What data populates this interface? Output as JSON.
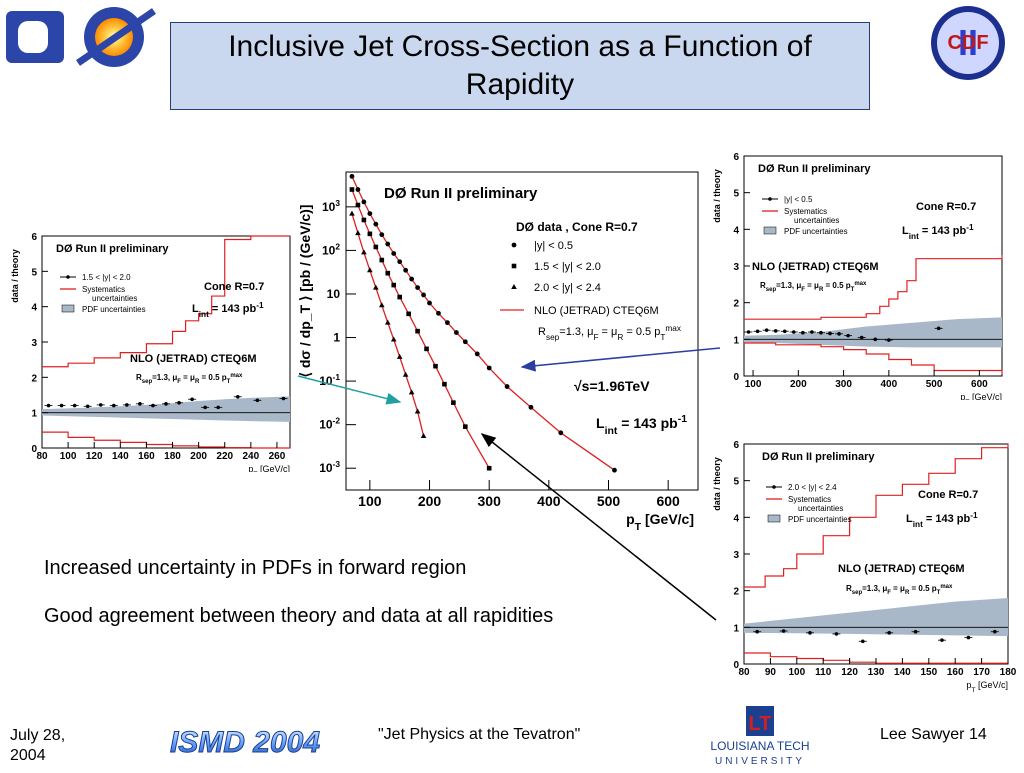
{
  "slide": {
    "title": "Inclusive Jet Cross-Section as a Function of Rapidity",
    "bullets": [
      "Increased uncertainty in PDFs in forward region",
      "Good agreement between theory and data at all rapidities"
    ],
    "footer": {
      "date": "July 28, 2004",
      "talk": "\"Jet Physics at the Tevatron\"",
      "author_page": "Lee Sawyer 14"
    },
    "logos": {
      "d0": "DØ",
      "cdf": "CDF",
      "cdf_roman": "II",
      "ismd": "ISMD 2004",
      "latech_line1": "LOUISIANA TECH",
      "latech_line2": "UNIVERSITY",
      "latech_mark": "LT"
    },
    "colors": {
      "title_bg": "#c9d7ef",
      "theory": "#e02020",
      "pdf_band": "#a8b8c8",
      "arrow_blue": "#2a3fa0",
      "arrow_teal": "#20a0a0"
    }
  },
  "chart_data": [
    {
      "id": "main",
      "type": "scatter",
      "title": "DØ Run II preliminary",
      "xlabel": "p_T [GeV/c]",
      "ylabel": "⟨ dσ / dp_T ⟩ [pb / (GeV/c)]",
      "log_y": true,
      "xlim": [
        60,
        650
      ],
      "ylim_exp": [
        -3.5,
        3.8
      ],
      "xticks": [
        "100",
        "200",
        "300",
        "400",
        "500",
        "600"
      ],
      "yticks": [
        {
          "base": "10",
          "exp": "3",
          "e": 3
        },
        {
          "base": "10",
          "exp": "2",
          "e": 2
        },
        {
          "base": "10",
          "exp": "",
          "e": 1
        },
        {
          "base": "1",
          "exp": "",
          "e": 0
        },
        {
          "base": "10",
          "exp": "-1",
          "e": -1
        },
        {
          "base": "10",
          "exp": "-2",
          "e": -2
        },
        {
          "base": "10",
          "exp": "-3",
          "e": -3
        }
      ],
      "legend_header": "DØ data , Cone R=0.7",
      "series": [
        {
          "name": "|y| < 0.5",
          "marker": "circle",
          "x": [
            70,
            80,
            90,
            100,
            110,
            120,
            130,
            140,
            150,
            160,
            170,
            180,
            190,
            200,
            215,
            230,
            245,
            260,
            280,
            300,
            330,
            370,
            420,
            510
          ],
          "y": [
            5000,
            2500,
            1300,
            700,
            400,
            230,
            140,
            85,
            55,
            35,
            22,
            14,
            9.5,
            6.2,
            3.6,
            2.2,
            1.3,
            0.8,
            0.42,
            0.2,
            0.075,
            0.025,
            0.0065,
            0.0009
          ]
        },
        {
          "name": "1.5 < |y| < 2.0",
          "marker": "square",
          "x": [
            70,
            80,
            90,
            100,
            110,
            120,
            130,
            140,
            150,
            165,
            180,
            195,
            210,
            225,
            240,
            260,
            300
          ],
          "y": [
            2500,
            1100,
            500,
            240,
            120,
            60,
            30,
            16,
            8.5,
            3.5,
            1.4,
            0.55,
            0.22,
            0.085,
            0.032,
            0.009,
            0.001
          ]
        },
        {
          "name": "2.0 < |y| < 2.4",
          "marker": "triangle",
          "x": [
            70,
            80,
            90,
            100,
            110,
            120,
            130,
            140,
            150,
            160,
            170,
            180,
            190
          ],
          "y": [
            700,
            250,
            90,
            35,
            14,
            5.5,
            2.2,
            0.9,
            0.36,
            0.14,
            0.055,
            0.02,
            0.0055
          ]
        }
      ],
      "theory_name": "NLO (JETRAD) CTEQ6M",
      "theory_params": "R_sep=1.3, μ_F = μ_R = 0.5 p_T^max",
      "energy": "√s=1.96TeV",
      "lumi": "L_int = 143 pb^-1"
    },
    {
      "id": "left",
      "type": "scatter",
      "title": "DØ Run II preliminary",
      "xlabel": "p_T [GeV/c]",
      "ylabel": "data / theory",
      "xlim": [
        80,
        270
      ],
      "ylim": [
        0,
        6
      ],
      "xticks": [
        "80",
        "100",
        "120",
        "140",
        "160",
        "180",
        "200",
        "220",
        "240",
        "260"
      ],
      "xtick_values": [
        80,
        100,
        120,
        140,
        160,
        180,
        200,
        220,
        240,
        260
      ],
      "yticks": [
        "0",
        "1",
        "2",
        "3",
        "4",
        "5",
        "6"
      ],
      "legend": [
        "1.5 < |y| < 2.0",
        "Systematics",
        "uncertainties",
        "PDF uncertainties"
      ],
      "cone": "Cone R=0.7",
      "lumi": "L_int = 143 pb^-1",
      "theory_name": "NLO (JETRAD) CTEQ6M",
      "theory_params": "R_sep=1.3,  μ_F = μ_R = 0.5 p_T^max",
      "points": {
        "x": [
          85,
          95,
          105,
          115,
          125,
          135,
          145,
          155,
          165,
          175,
          185,
          195,
          205,
          215,
          230,
          245,
          265
        ],
        "y": [
          1.2,
          1.2,
          1.2,
          1.18,
          1.22,
          1.2,
          1.22,
          1.25,
          1.2,
          1.25,
          1.28,
          1.38,
          1.15,
          1.15,
          1.45,
          1.35,
          1.4
        ]
      },
      "band": {
        "x": [
          80,
          100,
          120,
          140,
          160,
          180,
          200,
          220,
          240,
          270
        ],
        "lo": [
          0.92,
          0.9,
          0.88,
          0.86,
          0.84,
          0.82,
          0.8,
          0.78,
          0.76,
          0.74
        ],
        "hi": [
          1.1,
          1.12,
          1.15,
          1.18,
          1.22,
          1.27,
          1.33,
          1.38,
          1.42,
          1.46
        ]
      },
      "syst_up": {
        "x": [
          80,
          100,
          120,
          140,
          160,
          180,
          190,
          200,
          210,
          220,
          240,
          270
        ],
        "y": [
          2.3,
          2.4,
          2.55,
          2.7,
          2.95,
          3.3,
          3.6,
          3.8,
          4.3,
          5.9,
          6,
          6
        ]
      },
      "syst_dn": {
        "x": [
          80,
          100,
          120,
          140,
          160,
          180,
          200,
          220,
          240,
          270
        ],
        "y": [
          0.45,
          0.3,
          0.22,
          0.16,
          0.1,
          0.06,
          0.03,
          0.01,
          0,
          0
        ]
      }
    },
    {
      "id": "topright",
      "type": "scatter",
      "title": "DØ Run II preliminary",
      "xlabel": "p_T [GeV/c]",
      "ylabel": "data / theory",
      "xlim": [
        80,
        650
      ],
      "ylim": [
        0,
        6
      ],
      "xticks": [
        "100",
        "200",
        "300",
        "400",
        "500",
        "600"
      ],
      "xtick_values": [
        100,
        200,
        300,
        400,
        500,
        600
      ],
      "yticks": [
        "0",
        "1",
        "2",
        "3",
        "4",
        "5",
        "6"
      ],
      "legend": [
        "|y| < 0.5",
        "Systematics",
        "uncertainties",
        "PDF uncertainties"
      ],
      "cone": "Cone R=0.7",
      "lumi": "L_int = 143 pb^-1",
      "theory_name": "NLO (JETRAD) CTEQ6M",
      "theory_params": "R_sep=1.3,   μ_F = μ_R = 0.5 p_T^max",
      "points": {
        "x": [
          90,
          110,
          130,
          150,
          170,
          190,
          210,
          230,
          250,
          270,
          290,
          310,
          340,
          370,
          400,
          510
        ],
        "y": [
          1.2,
          1.22,
          1.25,
          1.23,
          1.22,
          1.2,
          1.18,
          1.2,
          1.18,
          1.16,
          1.15,
          1.1,
          1.05,
          1.0,
          0.98,
          1.3
        ]
      },
      "band": {
        "x": [
          80,
          150,
          250,
          350,
          450,
          550,
          650
        ],
        "lo": [
          0.92,
          0.9,
          0.85,
          0.8,
          0.78,
          0.78,
          0.78
        ],
        "hi": [
          1.1,
          1.12,
          1.2,
          1.35,
          1.45,
          1.55,
          1.6
        ]
      },
      "syst_up": {
        "x": [
          80,
          150,
          250,
          350,
          380,
          400,
          420,
          440,
          460,
          650
        ],
        "y": [
          1.55,
          1.55,
          1.6,
          1.7,
          1.9,
          2.1,
          2.3,
          2.6,
          3.2,
          3.3
        ]
      },
      "syst_dn": {
        "x": [
          80,
          150,
          250,
          300,
          350,
          400,
          450,
          500,
          650
        ],
        "y": [
          0.9,
          0.85,
          0.8,
          0.72,
          0.6,
          0.45,
          0.3,
          0.15,
          0.05
        ]
      }
    },
    {
      "id": "bottomright",
      "type": "scatter",
      "title": "DØ Run II preliminary",
      "xlabel": "p_T [GeV/c]",
      "ylabel": "data / theory",
      "xlim": [
        80,
        180
      ],
      "ylim": [
        0,
        6
      ],
      "xticks": [
        "80",
        "90",
        "100",
        "110",
        "120",
        "130",
        "140",
        "150",
        "160",
        "170",
        "180"
      ],
      "xtick_values": [
        80,
        90,
        100,
        110,
        120,
        130,
        140,
        150,
        160,
        170,
        180
      ],
      "yticks": [
        "0",
        "1",
        "2",
        "3",
        "4",
        "5",
        "6"
      ],
      "legend": [
        "2.0 < |y| < 2.4",
        "Systematics",
        "uncertainties",
        "PDF uncertainties"
      ],
      "cone": "Cone R=0.7",
      "lumi": "L_int = 143 pb^-1",
      "theory_name": "NLO (JETRAD) CTEQ6M",
      "theory_params": "R_sep=1.3,   μ_F = μ_R = 0.5 p_T^max",
      "points": {
        "x": [
          85,
          95,
          105,
          115,
          125,
          135,
          145,
          155,
          165,
          175
        ],
        "y": [
          0.88,
          0.9,
          0.85,
          0.82,
          0.62,
          0.85,
          0.88,
          0.65,
          0.72,
          0.88
        ]
      },
      "band": {
        "x": [
          80,
          100,
          120,
          140,
          160,
          180
        ],
        "lo": [
          0.85,
          0.84,
          0.82,
          0.8,
          0.78,
          0.76
        ],
        "hi": [
          1.1,
          1.25,
          1.4,
          1.55,
          1.7,
          1.8
        ]
      },
      "syst_up": {
        "x": [
          80,
          88,
          95,
          100,
          110,
          120,
          130,
          140,
          150,
          160,
          170,
          180
        ],
        "y": [
          2.1,
          2.4,
          2.6,
          3.0,
          3.5,
          4.0,
          4.6,
          4.9,
          5.2,
          5.6,
          5.9,
          6
        ]
      },
      "syst_dn": {
        "x": [
          80,
          90,
          100,
          110,
          120,
          130,
          180
        ],
        "y": [
          0.3,
          0.2,
          0.15,
          0.1,
          0.05,
          0.02,
          0
        ]
      }
    }
  ]
}
